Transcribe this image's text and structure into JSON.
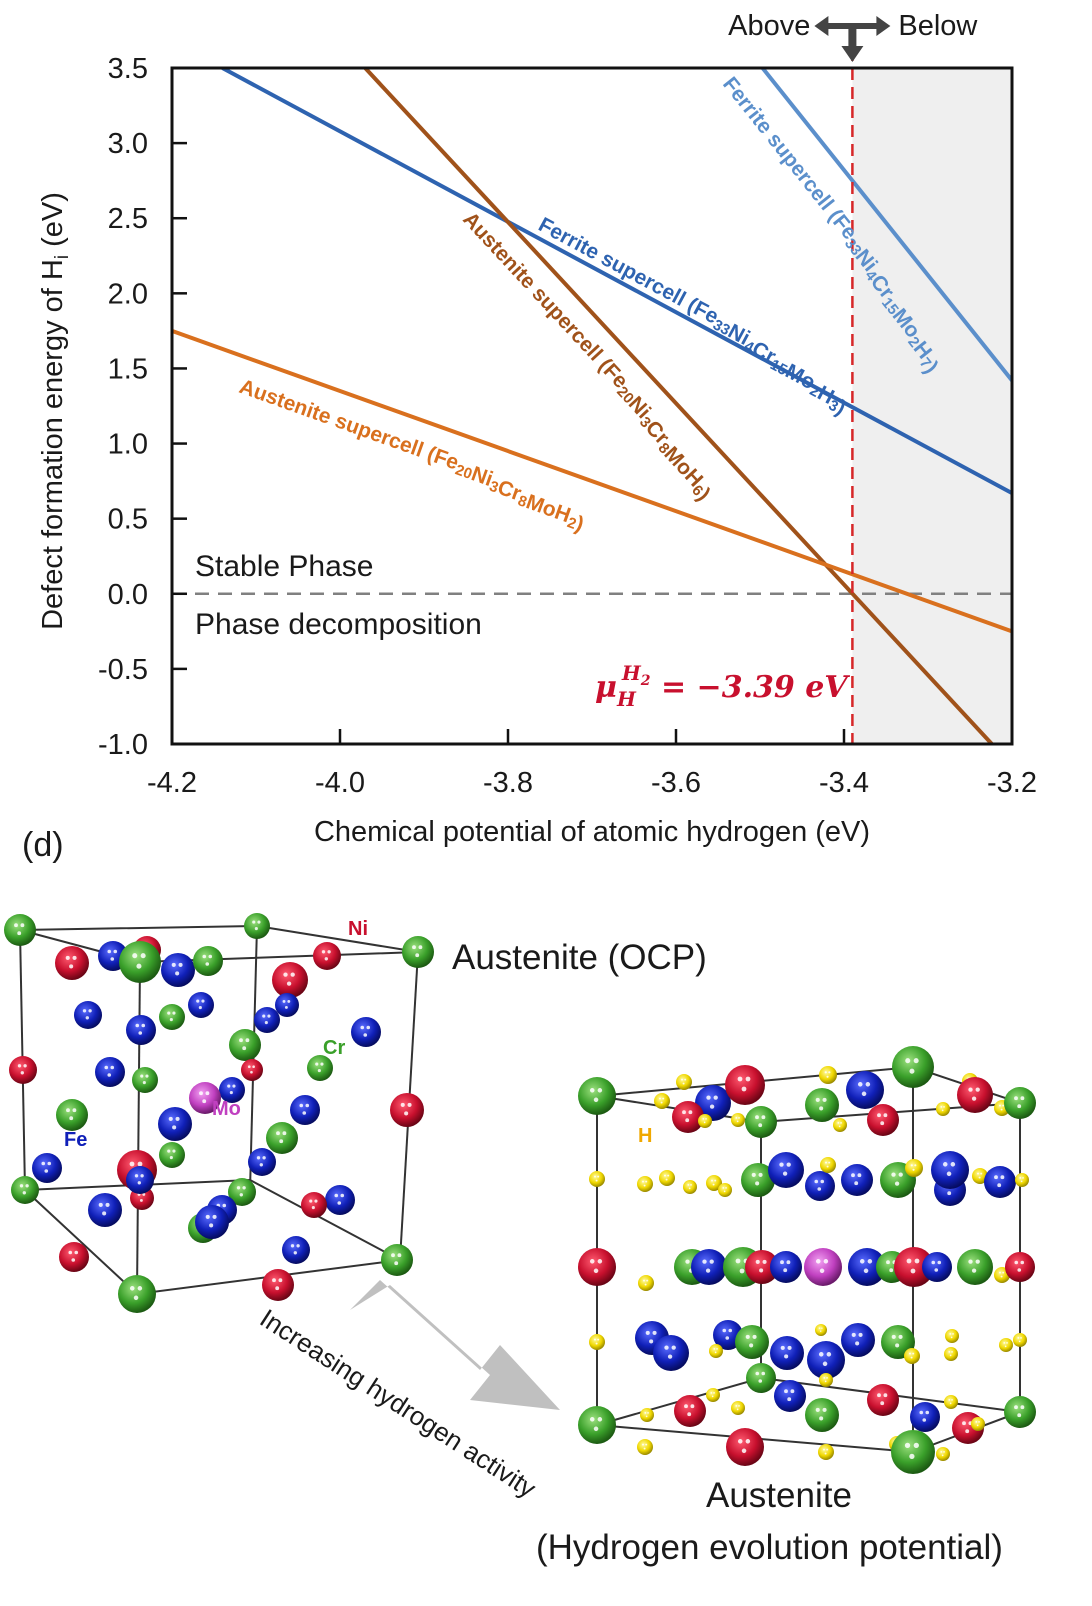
{
  "chart_data": {
    "type": "line",
    "title": "",
    "xlabel": "Chemical potential of atomic hydrogen (eV)",
    "ylabel_parts": {
      "pre": "Defect formation energy of H",
      "sub": "i",
      "post": " (eV)"
    },
    "ylabel": "Defect formation energy of Hi (eV)",
    "xlim": [
      -4.2,
      -3.2
    ],
    "ylim": [
      -1.0,
      3.5
    ],
    "xticks": [
      -4.2,
      -4.0,
      -3.8,
      -3.6,
      -3.4,
      -3.2
    ],
    "xtick_labels": [
      "-4.2",
      "-4.0",
      "-3.8",
      "-3.6",
      "-3.4",
      "-3.2"
    ],
    "yticks": [
      3.5,
      3.0,
      2.5,
      2.0,
      1.5,
      1.0,
      0.5,
      0.0,
      -0.5,
      -1.0
    ],
    "ytick_labels": [
      "3.5",
      "3.0",
      "2.5",
      "2.0",
      "1.5",
      "1.0",
      "0.5",
      "0.0",
      "-0.5",
      "-1.0"
    ],
    "grid": false,
    "series": [
      {
        "name": "Ferrite supercell (Fe33Ni4Cr15Mo2H7)",
        "color": "#5b8fcb",
        "x": [
          -3.497,
          -3.2
        ],
        "y": [
          3.5,
          1.42
        ]
      },
      {
        "name": "Ferrite supercell (Fe33Ni4Cr15Mo2H3)",
        "color": "#2e63b0",
        "x": [
          -4.14,
          -3.2
        ],
        "y": [
          3.5,
          0.67
        ]
      },
      {
        "name": "Austenite supercell (Fe20Ni3Cr8MoH6)",
        "color": "#a0521a",
        "x": [
          -3.97,
          -3.224
        ],
        "y": [
          3.5,
          -1.0
        ]
      },
      {
        "name": "Austenite supercell (Fe20Ni3Cr8MoH2)",
        "color": "#d9701e",
        "x": [
          -4.2,
          -3.2
        ],
        "y": [
          1.75,
          -0.25
        ]
      }
    ],
    "series_labels": [
      {
        "pre": "Ferrite supercell (Fe",
        "parts": [
          [
            "33",
            ""
          ],
          [
            "Ni",
            ""
          ],
          [
            "4",
            ""
          ],
          [
            "Cr",
            ""
          ],
          [
            "15",
            ""
          ],
          [
            "Mo",
            ""
          ],
          [
            "2",
            ""
          ],
          [
            "H",
            ""
          ],
          [
            "7",
            ""
          ]
        ],
        "text": "Ferrite supercell (Fe33Ni4Cr15Mo2H7)"
      },
      {
        "text": "Ferrite supercell (Fe33Ni4Cr15Mo2H3)"
      },
      {
        "text": "Austenite supercell (Fe20Ni3Cr8MoH6)"
      },
      {
        "text": "Austenite supercell (Fe20Ni3Cr8MoH2)"
      }
    ],
    "reference_lines": [
      {
        "type": "vertical",
        "x": -3.39,
        "style": "dashed",
        "color": "#d62728"
      },
      {
        "type": "horizontal",
        "y": 0.0,
        "style": "dashed",
        "color": "#808080"
      }
    ],
    "shaded_region": {
      "x_from": -3.39,
      "x_to": -3.2,
      "color": "#efefef"
    },
    "annotations": {
      "stable": "Stable Phase",
      "decomposition": "Phase decomposition",
      "mu_symbol": "μ",
      "mu_sub": "H",
      "mu_sup": "H",
      "mu_sup_sub": "2",
      "mu_value": " = −3.39 eV",
      "above": "Above",
      "below": "Below"
    }
  },
  "panel_label": "(d)",
  "structures": {
    "left_title": "Austenite (OCP)",
    "right_title_line1": "Austenite",
    "right_title_line2": "(Hydrogen evolution potential)",
    "arrow_label": "Increasing hydrogen activity",
    "element_labels": {
      "ni": "Ni",
      "cr": "Cr",
      "mo": "Mo",
      "fe": "Fe",
      "h": "H"
    },
    "element_colors": {
      "Fe": "#1020b8",
      "Ni": "#c8102e",
      "Cr": "#3aa02a",
      "Mo": "#c040c0",
      "H": "#f0d800"
    }
  }
}
